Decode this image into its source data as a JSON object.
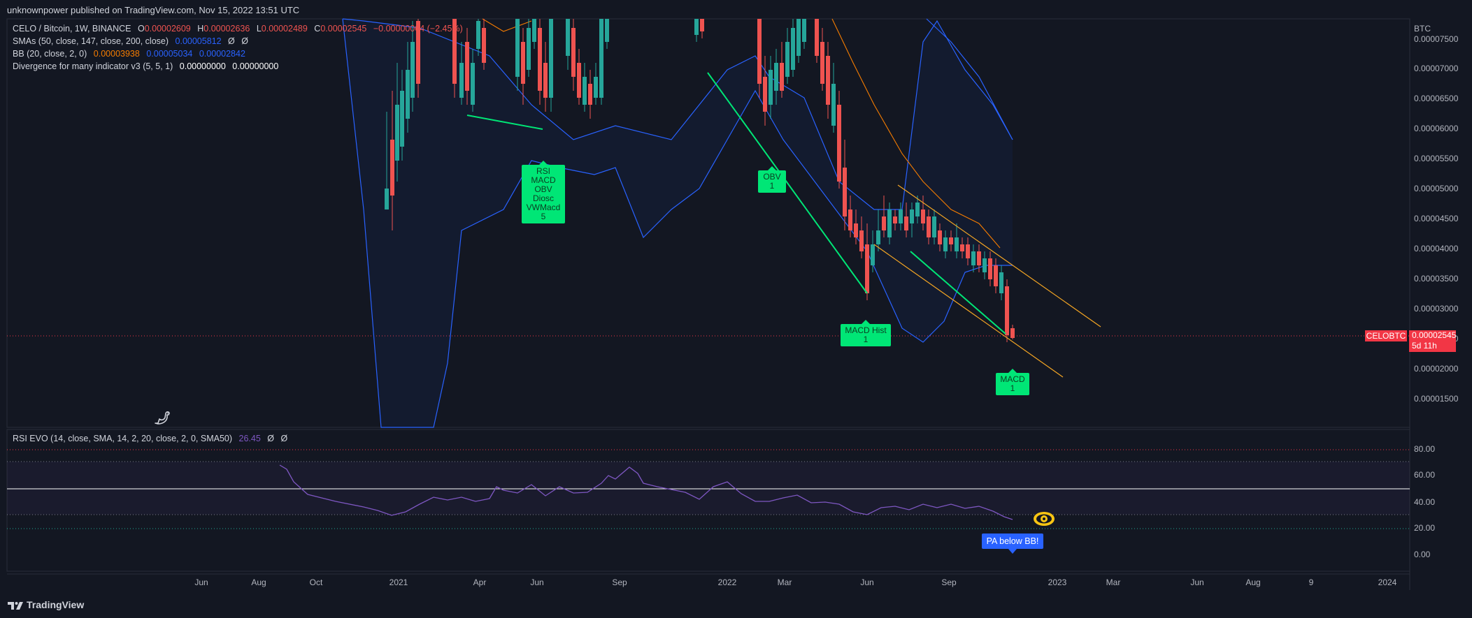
{
  "header": {
    "published": "unknownpower published on TradingView.com, Nov 15, 2022 13:51 UTC"
  },
  "legend": {
    "symbol": "CELO / Bitcoin, 1W, BINANCE",
    "ohlc": {
      "o_label": "O",
      "o": "0.00002609",
      "h_label": "H",
      "h": "0.00002636",
      "l_label": "L",
      "l": "0.00002489",
      "c_label": "C",
      "c": "0.00002545",
      "change": "−0.00000064 (−2.45%)"
    },
    "sma": {
      "label": "SMAs (50, close, 147, close, 200, close)",
      "v1": "0.00005812",
      "v2": "Ø",
      "v3": "Ø"
    },
    "bb": {
      "label": "BB (20, close, 2, 0)",
      "v1": "0.00003938",
      "v2": "0.00005034",
      "v3": "0.00002842"
    },
    "div": {
      "label": "Divergence for many indicator v3 (5, 5, 1)",
      "v1": "0.00000000",
      "v2": "0.00000000"
    },
    "rsi": {
      "label": "RSI EVO (14, close, SMA, 14, 2, 20, close, 2, 0, SMA50)",
      "v1": "26.45",
      "v2": "Ø",
      "v3": "Ø"
    }
  },
  "price_axis": {
    "currency": "BTC",
    "ticks": [
      "0.00007500",
      "0.00007000",
      "0.00006500",
      "0.00006000",
      "0.00005500",
      "0.00005000",
      "0.00004500",
      "0.00004000",
      "0.00003500",
      "0.00003000",
      "0.00002500",
      "0.00002000",
      "0.00001500"
    ]
  },
  "rsi_axis": {
    "ticks": [
      "80.00",
      "60.00",
      "40.00",
      "20.00",
      "0.00"
    ]
  },
  "time_axis": {
    "ticks": [
      "Jun",
      "Aug",
      "Oct",
      "2021",
      "Apr",
      "Jun",
      "Sep",
      "2022",
      "Mar",
      "Jun",
      "Sep",
      "2023",
      "Mar",
      "Jun",
      "Aug",
      "9",
      "2024"
    ]
  },
  "price_tag": {
    "symbol": "CELOBTC",
    "value": "0.00002545",
    "countdown": "5d 11h"
  },
  "tags": {
    "div_multi": [
      "RSI",
      "MACD",
      "OBV",
      "Diosc",
      "VWMacd",
      "5"
    ],
    "obv": [
      "OBV",
      "1"
    ],
    "macd_hist": [
      "MACD Hist",
      "1"
    ],
    "macd": [
      "MACD",
      "1"
    ],
    "pa": "PA below BB!"
  },
  "brand": "TradingView",
  "colors": {
    "background": "#131722",
    "up": "#26a69a",
    "down": "#ef5350",
    "bb_band": "#2962ff",
    "sma": "#f57c00",
    "divergence": "#00e676",
    "rsi_line": "#7e57c2",
    "price_tag": "#f23645",
    "pa_tag": "#2962ff"
  },
  "icons": [
    "dino-icon",
    "eye-icon",
    "tradingview-logo-icon"
  ]
}
